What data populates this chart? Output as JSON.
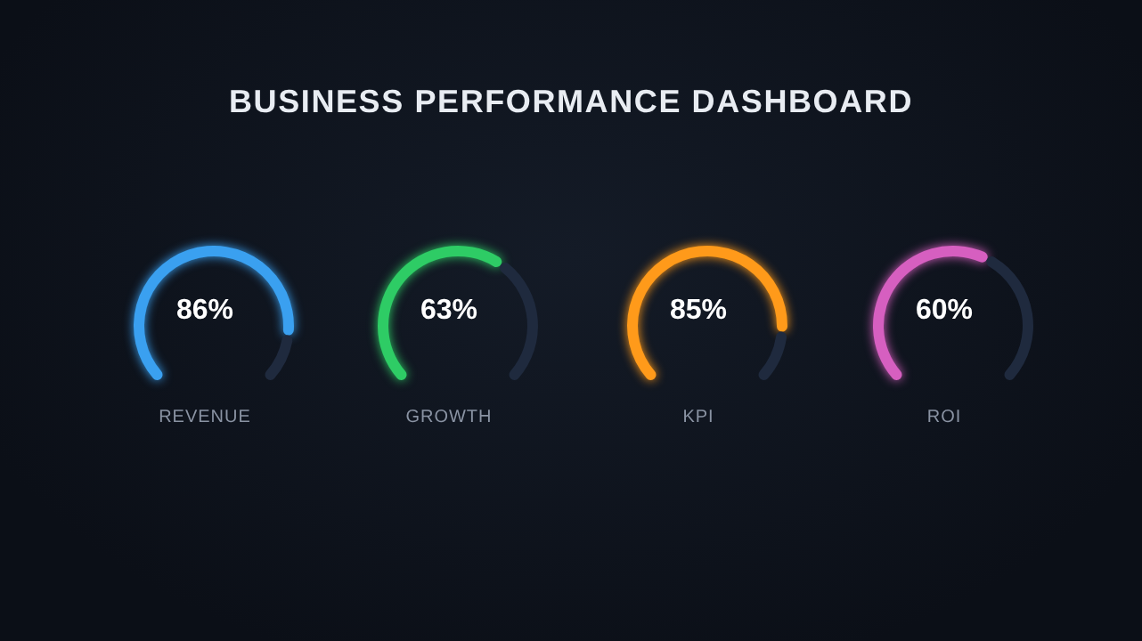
{
  "chart_data": [
    {
      "type": "donut",
      "title": "BUSINESS PERFORMANCE DASHBOARD",
      "xlabel": "REVENUE",
      "categories": [
        null,
        null
      ],
      "values": [
        86,
        14
      ],
      "colors": [
        "#3aa0f0",
        "#1f2a3e"
      ],
      "value_labels": [
        "86%",
        null
      ]
    },
    {
      "type": "donut",
      "xlabel": "GROWTH",
      "categories": [
        null,
        null
      ],
      "values": [
        63,
        37
      ],
      "colors": [
        "#2ecc65",
        "#1f2a3e"
      ],
      "value_labels": [
        "63%",
        null
      ]
    },
    {
      "type": "donut",
      "xlabel": "KPI",
      "categories": [
        null,
        null
      ],
      "values": [
        85,
        15
      ],
      "colors": [
        "#ff9a1a",
        "#1f2a3e"
      ],
      "value_labels": [
        "85%",
        null
      ]
    },
    {
      "type": "donut",
      "xlabel": "ROI",
      "categories": [
        null,
        null
      ],
      "values": [
        60,
        40
      ],
      "colors": [
        "#d65fc0",
        "#1f2a3e"
      ],
      "value_labels": [
        "60%",
        null
      ]
    }
  ]
}
